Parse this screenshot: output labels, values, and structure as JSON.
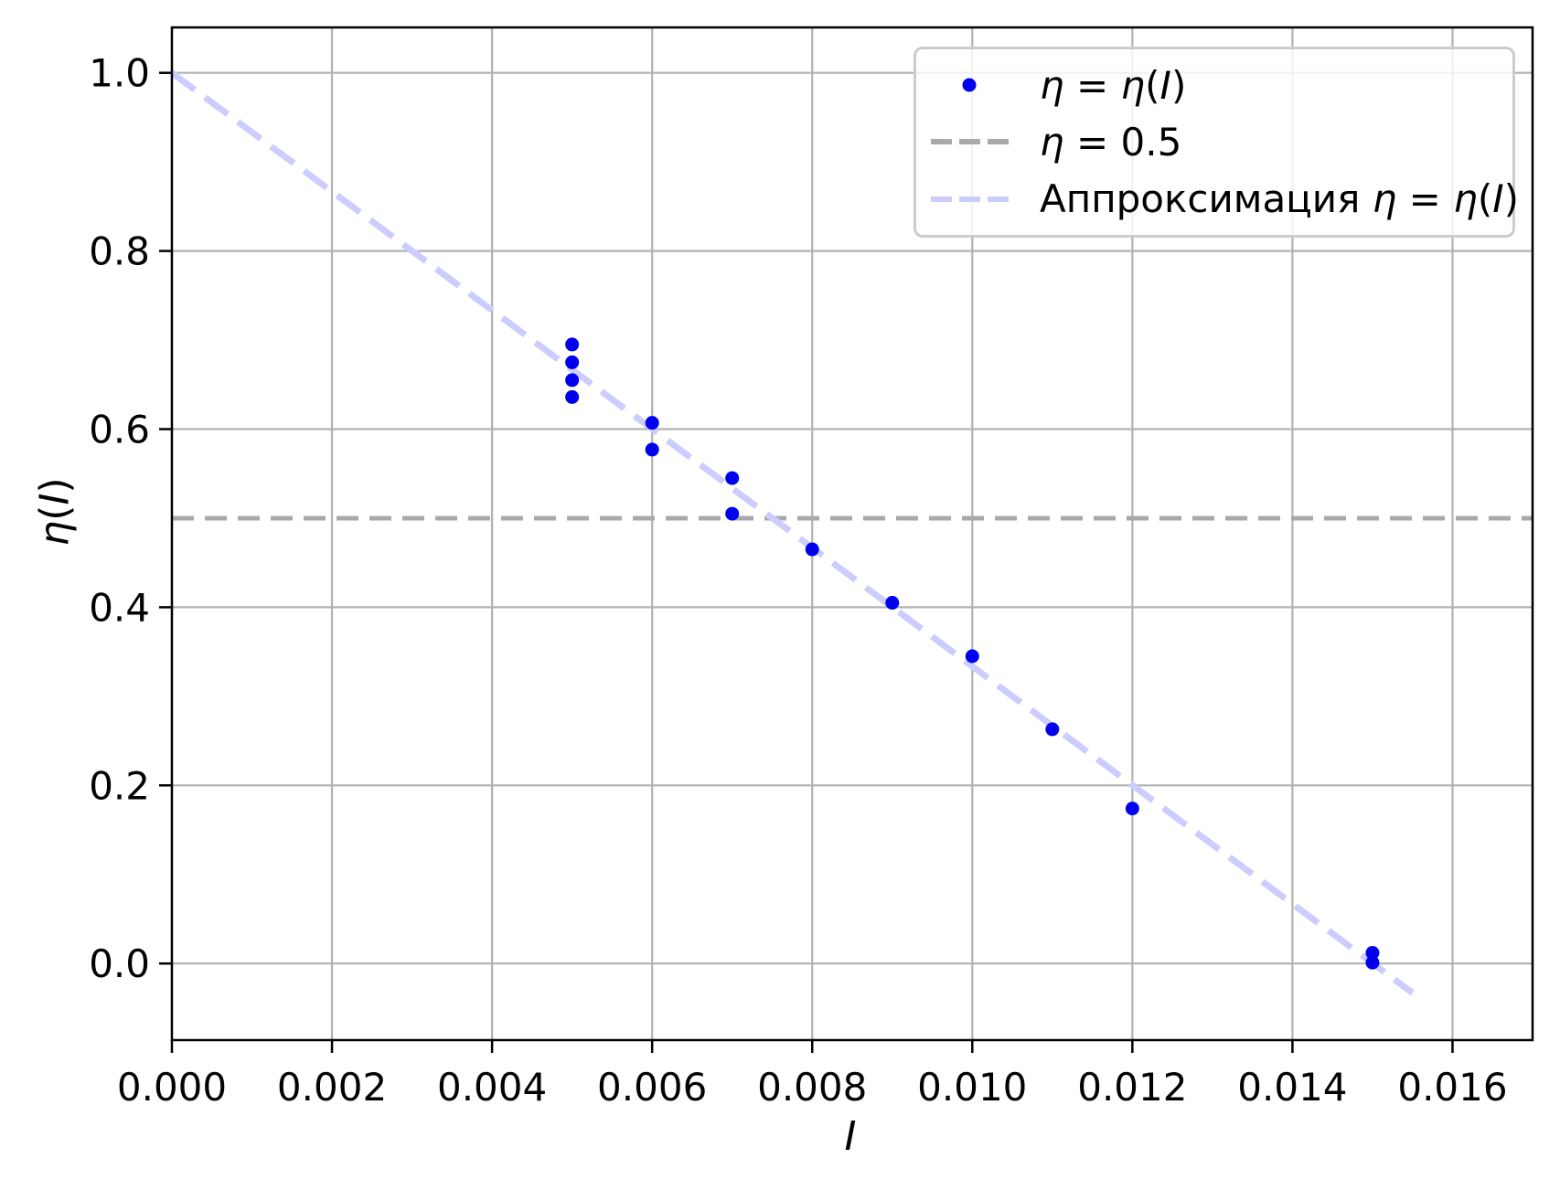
{
  "colors": {
    "points": "#0000ee",
    "threshold": "#a9a9a9",
    "fit": "#ccccff",
    "grid": "#b2b2b2",
    "spine": "#000000",
    "legend_border": "#cccccc"
  },
  "chart_data": {
    "type": "scatter",
    "title": "",
    "xlabel": "I",
    "ylabel": "η(I)",
    "xlabel_segments": [
      {
        "t": "I",
        "i": true
      }
    ],
    "ylabel_segments": [
      {
        "t": "η",
        "i": true
      },
      {
        "t": "(",
        "i": false
      },
      {
        "t": "I",
        "i": true
      },
      {
        "t": ")",
        "i": false
      }
    ],
    "xlim": [
      0,
      0.017
    ],
    "ylim": [
      -0.086,
      1.051
    ],
    "grid": true,
    "legend_position": "upper right",
    "xticks": {
      "values": [
        0,
        0.002,
        0.004,
        0.006,
        0.008,
        0.01,
        0.012,
        0.014,
        0.016
      ],
      "labels": [
        "0.000",
        "0.002",
        "0.004",
        "0.006",
        "0.008",
        "0.010",
        "0.012",
        "0.014",
        "0.016"
      ]
    },
    "yticks": {
      "values": [
        0,
        0.2,
        0.4,
        0.6,
        0.8,
        1.0
      ],
      "labels": [
        "0.0",
        "0.2",
        "0.4",
        "0.6",
        "0.8",
        "1.0"
      ]
    },
    "scatter": {
      "name": "η = η(I)",
      "color": "#0000ee",
      "points": [
        [
          0.005,
          0.695
        ],
        [
          0.005,
          0.675
        ],
        [
          0.005,
          0.655
        ],
        [
          0.005,
          0.636
        ],
        [
          0.006,
          0.607
        ],
        [
          0.006,
          0.577
        ],
        [
          0.007,
          0.545
        ],
        [
          0.007,
          0.505
        ],
        [
          0.008,
          0.465
        ],
        [
          0.009,
          0.405
        ],
        [
          0.01,
          0.345
        ],
        [
          0.011,
          0.263
        ],
        [
          0.012,
          0.174
        ],
        [
          0.015,
          0.012
        ],
        [
          0.015,
          0.001
        ]
      ]
    },
    "hline": {
      "name": "η = 0.5",
      "y": 0.5,
      "color": "#a9a9a9"
    },
    "fit_line": {
      "name": "Аппроксимация η = η(I)",
      "x": [
        0,
        0.0155
      ],
      "y": [
        1.0,
        -0.033
      ],
      "color": "#ccccff"
    }
  },
  "legend": {
    "entries": [
      {
        "marker": "dot",
        "color": "#0000ee",
        "label": "η = η(I)",
        "segments": [
          {
            "t": "η",
            "i": true
          },
          {
            "t": " = ",
            "i": false
          },
          {
            "t": "η",
            "i": true
          },
          {
            "t": "(",
            "i": false
          },
          {
            "t": "I",
            "i": true
          },
          {
            "t": ")",
            "i": false
          }
        ]
      },
      {
        "marker": "dashes",
        "color": "#a9a9a9",
        "label": "η = 0.5",
        "segments": [
          {
            "t": "η",
            "i": true
          },
          {
            "t": " = 0.5",
            "i": false
          }
        ]
      },
      {
        "marker": "dashes",
        "color": "#ccccff",
        "label": "Аппроксимация η = η(I)",
        "segments": [
          {
            "t": "Аппроксимация ",
            "i": false
          },
          {
            "t": "η",
            "i": true
          },
          {
            "t": " = ",
            "i": false
          },
          {
            "t": "η",
            "i": true
          },
          {
            "t": "(",
            "i": false
          },
          {
            "t": "I",
            "i": true
          },
          {
            "t": ")",
            "i": false
          }
        ]
      }
    ]
  }
}
